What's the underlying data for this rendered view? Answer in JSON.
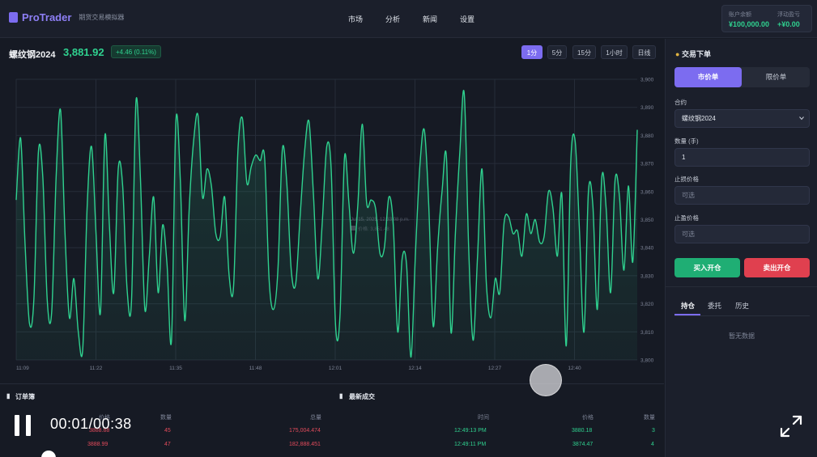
{
  "header": {
    "logo": "ProTrader",
    "subtitle": "期货交易模拟器",
    "nav": [
      "市场",
      "分析",
      "新闻",
      "设置"
    ],
    "account": {
      "balance_label": "账户余额",
      "balance_value": "¥100,000.00",
      "pnl_label": "浮动盈亏",
      "pnl_value": "+¥0.00"
    }
  },
  "symbol": {
    "name": "螺纹钢2024",
    "price": "3,881.92",
    "change": "+4.46 (0.11%)"
  },
  "timeframes": [
    "1分",
    "5分",
    "15分",
    "1小时",
    "日线"
  ],
  "active_timeframe": "1分",
  "colors": {
    "accent": "#7c6cf0",
    "up": "#2fd18f",
    "down": "#e24b5b"
  },
  "chart_data": {
    "type": "area",
    "title": "",
    "xlabel": "",
    "ylabel": "",
    "x_ticks": [
      "11:09",
      "11:22",
      "11:35",
      "11:48",
      "12:01",
      "12:14",
      "12:27",
      "12:40"
    ],
    "y_ticks": [
      "3,800",
      "3,810",
      "3,820",
      "3,830",
      "3,840",
      "3,850",
      "3,860",
      "3,870",
      "3,880",
      "3,890",
      "3,900"
    ],
    "ylim": [
      3800,
      3900
    ],
    "grid": true,
    "tooltip": {
      "time": "Jul 15, 2025, 12:33:08 p.m.",
      "value_label": "价格: 3,851.48"
    },
    "series": [
      {
        "values": [
          3857,
          3879,
          3841,
          3813,
          3822,
          3874,
          3865,
          3821,
          3817,
          3865,
          3889,
          3845,
          3815,
          3829,
          3810,
          3804,
          3855,
          3876,
          3845,
          3817,
          3880,
          3848,
          3824,
          3868,
          3862,
          3825,
          3821,
          3892,
          3865,
          3818,
          3837,
          3858,
          3824,
          3848,
          3834,
          3807,
          3885,
          3864,
          3814,
          3854,
          3878,
          3887,
          3858,
          3868,
          3862,
          3845,
          3844,
          3858,
          3830,
          3826,
          3875,
          3886,
          3863,
          3869,
          3873,
          3871,
          3872,
          3829,
          3818,
          3832,
          3875,
          3863,
          3832,
          3827,
          3851,
          3874,
          3885,
          3859,
          3829,
          3849,
          3876,
          3868,
          3812,
          3816,
          3872,
          3856,
          3838,
          3855,
          3884,
          3856,
          3857,
          3854,
          3838,
          3840,
          3858,
          3848,
          3810,
          3836,
          3834,
          3801,
          3838,
          3869,
          3882,
          3855,
          3812,
          3840,
          3860,
          3872,
          3810,
          3845,
          3874,
          3895,
          3840,
          3807,
          3837,
          3868,
          3827,
          3815,
          3829,
          3824,
          3849,
          3851,
          3845,
          3846,
          3837,
          3852,
          3845,
          3850,
          3842,
          3844,
          3860,
          3854,
          3837,
          3859,
          3805,
          3870,
          3878,
          3845,
          3810,
          3860,
          3855,
          3818,
          3865,
          3854,
          3824,
          3864,
          3858,
          3832,
          3862,
          3835,
          3882
        ]
      }
    ]
  },
  "orderbook": {
    "title": "订单簿",
    "headers": [
      "价格",
      "数量",
      "总量"
    ],
    "rows": [
      [
        "3888.88",
        "45",
        "175,004.474"
      ],
      [
        "3888.99",
        "47",
        "182,888.451"
      ]
    ]
  },
  "trades": {
    "title": "最新成交",
    "headers": [
      "时间",
      "价格",
      "数量"
    ],
    "rows": [
      [
        "12:49:13 PM",
        "3880.18",
        "3"
      ],
      [
        "12:49:11 PM",
        "3874.47",
        "4"
      ]
    ]
  },
  "player": {
    "timecode": "00:01/00:38"
  },
  "order_form": {
    "title": "交易下单",
    "types": [
      "市价单",
      "限价单"
    ],
    "contract_label": "合约",
    "contract_value": "螺纹钢2024",
    "qty_label": "数量 (手)",
    "qty_value": "1",
    "stop_loss_label": "止损价格",
    "stop_loss_placeholder": "可选",
    "take_profit_label": "止盈价格",
    "take_profit_placeholder": "可选",
    "buy_label": "买入开仓",
    "sell_label": "卖出开仓",
    "tabs": [
      "持仓",
      "委托",
      "历史"
    ],
    "empty_text": "暂无数据"
  }
}
